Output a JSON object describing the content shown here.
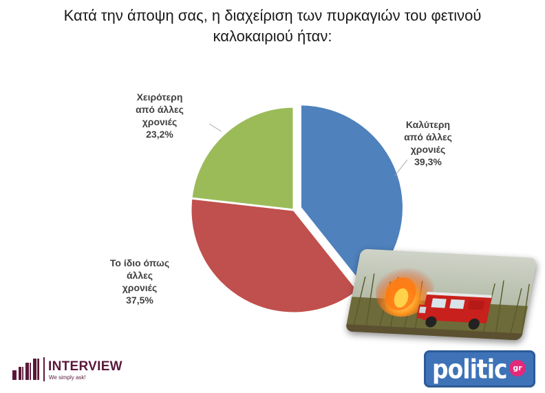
{
  "title_line1": "Κατά την άποψη σας, η διαχείριση των πυρκαγιών του φετινού",
  "title_line2": "καλοκαιριού ήταν:",
  "colors": {
    "better": "#4f81bd",
    "same": "#c0504d",
    "worse": "#9bbb59",
    "label": "#404040"
  },
  "chart_data": {
    "type": "pie",
    "title": "Κατά την άποψη σας, η διαχείριση των πυρκαγιών του φετινού καλοκαιριού ήταν:",
    "slices": [
      {
        "label": [
          "Καλύτερη",
          "από άλλες",
          "χρονιές"
        ],
        "value": 39.3,
        "display": "39,3%",
        "color": "#4f81bd",
        "exploded": true
      },
      {
        "label": [
          "Το ίδιο όπως",
          "άλλες",
          "χρονιές"
        ],
        "value": 37.5,
        "display": "37,5%",
        "color": "#c0504d",
        "exploded": false
      },
      {
        "label": [
          "Χειρότερη",
          "από άλλες",
          "χρονιές"
        ],
        "value": 23.2,
        "display": "23,2%",
        "color": "#9bbb59",
        "exploded": false
      }
    ],
    "start_angle": "12 o'clock",
    "direction": "clockwise",
    "legend": "none (labels outside slices)"
  },
  "logos": {
    "interview_name": "INTERVIEW",
    "interview_tagline": "We simply ask!",
    "politic_name": "politic",
    "politic_badge": "gr"
  },
  "photo": "fire-truck-wildfire-image"
}
